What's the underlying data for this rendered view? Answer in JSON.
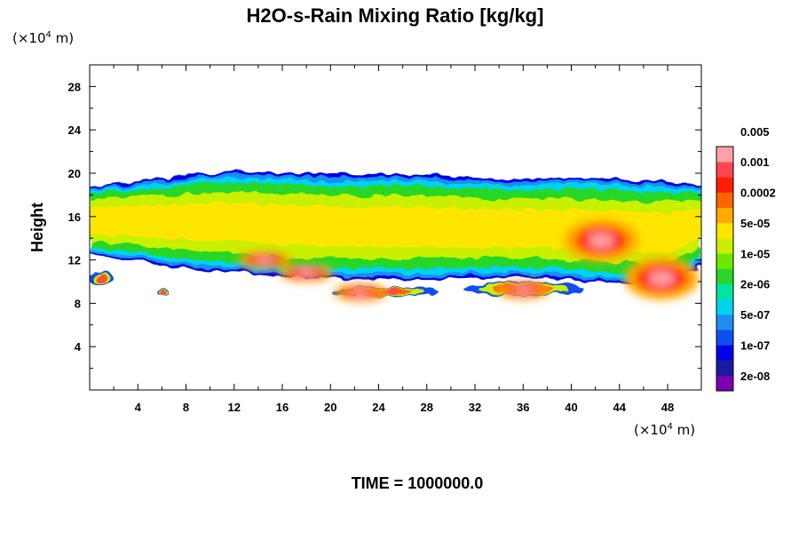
{
  "chart_data": {
    "type": "heatmap",
    "title": "H2O-s-Rain Mixing Ratio [kg/kg]",
    "ylabel": "Height",
    "x_unit_prefix": "(×10",
    "x_unit_exp": "4",
    "x_unit_suffix": " m)",
    "y_unit_prefix": "(×10",
    "y_unit_exp": "4",
    "y_unit_suffix": " m)",
    "time_label": "TIME = 1000000.0",
    "xlim": [
      0,
      50.8
    ],
    "ylim": [
      0,
      30
    ],
    "x_ticks": [
      4,
      8,
      12,
      16,
      20,
      24,
      28,
      32,
      36,
      40,
      44,
      48
    ],
    "y_ticks": [
      4,
      8,
      12,
      16,
      20,
      24,
      28
    ],
    "colorbar": {
      "colors": [
        "#7a00b0",
        "#1a1aa0",
        "#0000e6",
        "#0f4ff0",
        "#1e8cf0",
        "#00d2f0",
        "#00e6a0",
        "#28d728",
        "#6ee600",
        "#c8f000",
        "#ffe600",
        "#ffaa00",
        "#ff6400",
        "#ff1e00",
        "#ff4650",
        "#ffa0a8"
      ],
      "labels": [
        "2e-08",
        "1e-07",
        "5e-07",
        "2e-06",
        "1e-05",
        "5e-05",
        "0.0002",
        "0.001",
        "0.005"
      ]
    },
    "field": {
      "upper_layer": {
        "x_range": [
          0,
          50.8
        ],
        "top_height": [
          18.8,
          19.2,
          19.6,
          20.0,
          20.2,
          20.0,
          20.0,
          19.8,
          20.0,
          19.8,
          19.6,
          19.4,
          19.5,
          19.6,
          19.4,
          19.3,
          19.0
        ],
        "bottom_height": [
          12.5,
          12.0,
          11.4,
          11.0,
          10.8,
          10.4,
          10.3,
          10.2,
          10.2,
          10.2,
          10.3,
          10.4,
          10.3,
          10.0,
          9.8,
          9.6,
          11.6
        ]
      },
      "lower_bands": [
        {
          "x": [
            20,
            29
          ],
          "y": [
            8.6,
            9.5
          ]
        },
        {
          "x": [
            31,
            41
          ],
          "y": [
            8.7,
            10.0
          ]
        },
        {
          "x": [
            0,
            2
          ],
          "y": [
            9.5,
            11.0
          ]
        },
        {
          "x": [
            5.5,
            6.5
          ],
          "y": [
            8.8,
            9.4
          ]
        }
      ],
      "maxima": [
        {
          "x": 42.5,
          "y": 13.8,
          "value": 0.005
        },
        {
          "x": 18.0,
          "y": 10.8,
          "value": 0.001
        },
        {
          "x": 47.5,
          "y": 10.3,
          "value": 0.005
        },
        {
          "x": 36.0,
          "y": 9.2,
          "value": 0.001
        },
        {
          "x": 22.5,
          "y": 9.0,
          "value": 0.001
        },
        {
          "x": 14.5,
          "y": 12.0,
          "value": 0.001
        }
      ]
    }
  }
}
